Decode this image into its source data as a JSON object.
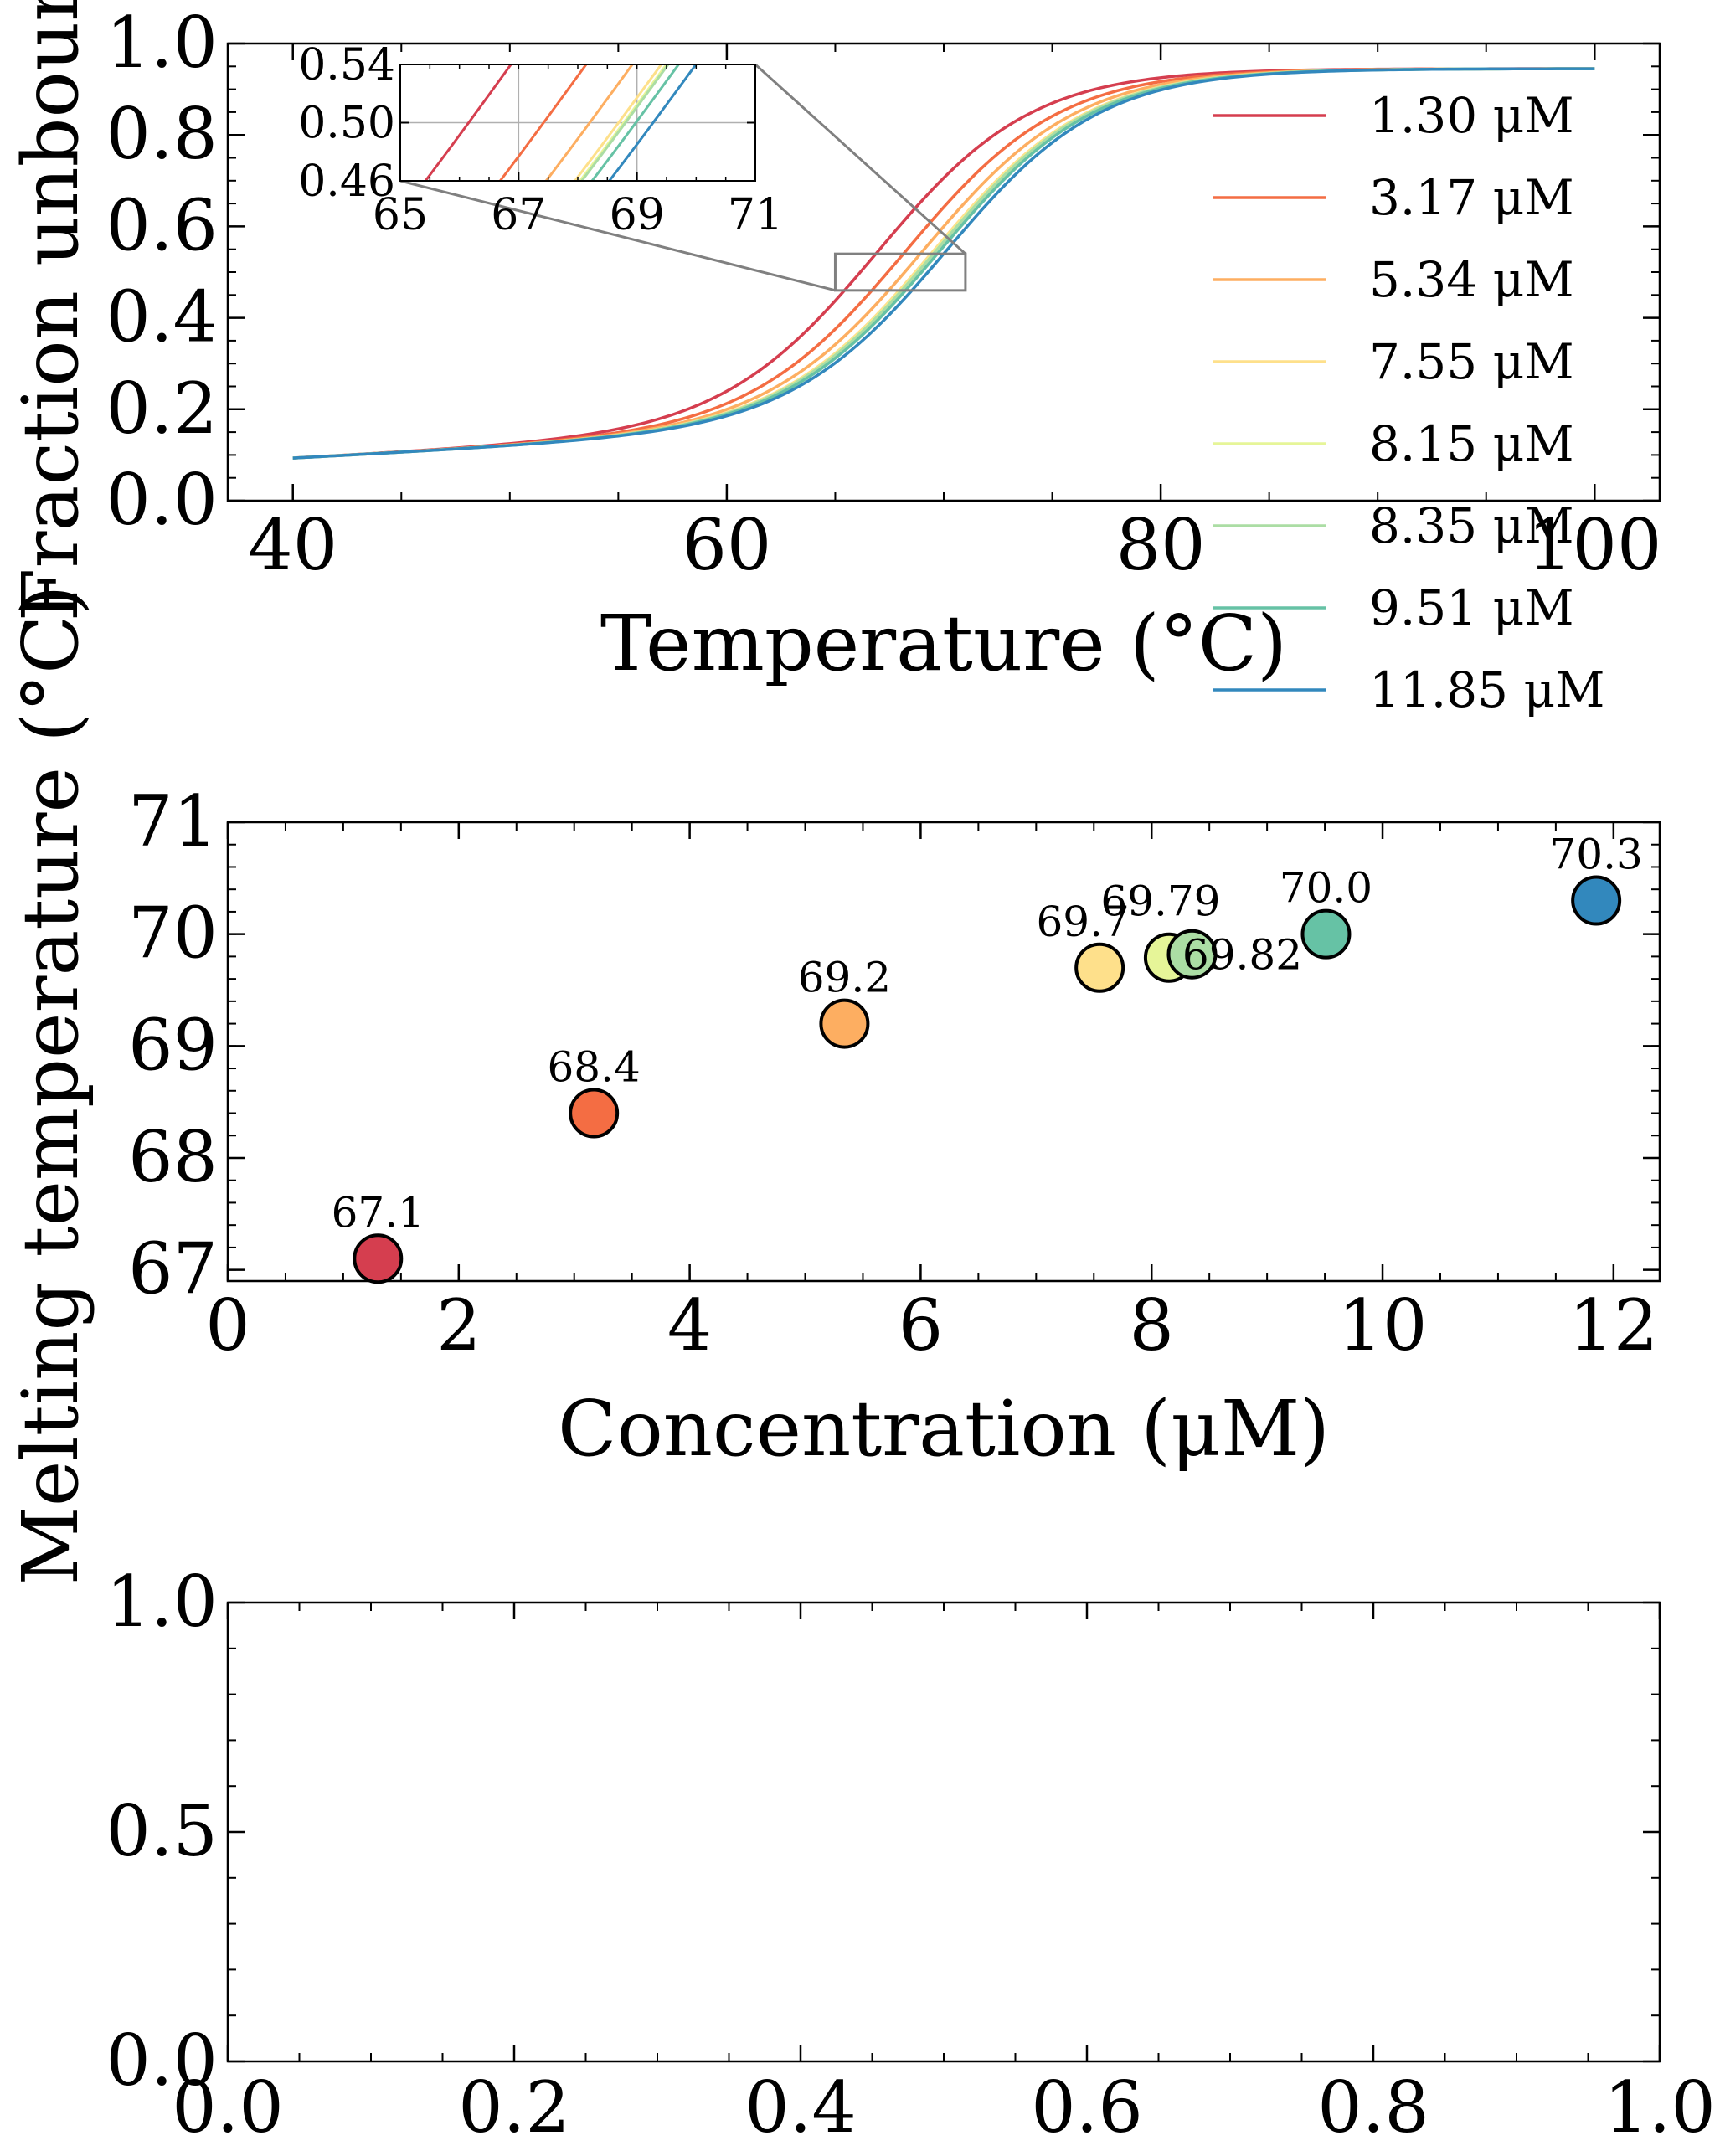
{
  "colors": {
    "s1": "#d53e4f",
    "s2": "#f46d43",
    "s3": "#fdae61",
    "s4": "#fee08b",
    "s5": "#e6f598",
    "s6": "#abdda4",
    "s7": "#66c2a5",
    "s8": "#3288bd",
    "inset_box": "#808080",
    "grid": "#b0b0b0"
  },
  "chart_data": [
    {
      "type": "line",
      "title": "",
      "xlabel": "Temperature (°C)",
      "ylabel": "Fraction unbound",
      "xlim": [
        37,
        103
      ],
      "ylim": [
        0.0,
        1.0
      ],
      "xticks": [
        "40",
        "60",
        "80",
        "100"
      ],
      "yticks": [
        "0.0",
        "0.2",
        "0.4",
        "0.6",
        "0.8",
        "1.0"
      ],
      "legend_placement": "right",
      "series": [
        {
          "name": "1.30 μM",
          "tm": 67.1
        },
        {
          "name": "3.17 μM",
          "tm": 68.4
        },
        {
          "name": "5.34 μM",
          "tm": 69.2
        },
        {
          "name": "7.55 μM",
          "tm": 69.7
        },
        {
          "name": "8.15 μM",
          "tm": 69.79
        },
        {
          "name": "8.35 μM",
          "tm": 69.82
        },
        {
          "name": "9.51 μM",
          "tm": 70.0
        },
        {
          "name": "11.85 μM",
          "tm": 70.3
        }
      ],
      "x_range": [
        40,
        100
      ],
      "baseline_low": [
        0.093,
        0.0025
      ],
      "baseline_high": 0.945,
      "inset": {
        "xlim": [
          65,
          71
        ],
        "ylim": [
          0.46,
          0.54
        ],
        "xticks": [
          "65",
          "67",
          "69",
          "71"
        ],
        "yticks": [
          "0.46",
          "0.50",
          "0.54"
        ],
        "grid": true
      }
    },
    {
      "type": "scatter",
      "title": "",
      "xlabel": "Concentration (μM)",
      "ylabel": "Melting temperature (°C)",
      "xlim": [
        0,
        12.4
      ],
      "ylim": [
        66.9,
        71.0
      ],
      "xticks": [
        "0",
        "2",
        "4",
        "6",
        "8",
        "10",
        "12"
      ],
      "yticks": [
        "67",
        "68",
        "69",
        "70",
        "71"
      ],
      "points": [
        {
          "x": 1.3,
          "y": 67.1,
          "label": "67.1"
        },
        {
          "x": 3.17,
          "y": 68.4,
          "label": "68.4"
        },
        {
          "x": 5.34,
          "y": 69.2,
          "label": "69.2"
        },
        {
          "x": 7.55,
          "y": 69.7,
          "label": "69.7"
        },
        {
          "x": 8.15,
          "y": 69.79,
          "label": "69.79"
        },
        {
          "x": 8.35,
          "y": 69.82,
          "label": "69.82"
        },
        {
          "x": 9.51,
          "y": 70.0,
          "label": "70.0"
        },
        {
          "x": 11.85,
          "y": 70.3,
          "label": "70.3"
        }
      ]
    },
    {
      "type": "line",
      "title": "",
      "xlabel": "",
      "ylabel": "",
      "xlim": [
        0.0,
        1.0
      ],
      "ylim": [
        0.0,
        1.0
      ],
      "xticks": [
        "0.0",
        "0.2",
        "0.4",
        "0.6",
        "0.8",
        "1.0"
      ],
      "yticks": [
        "0.0",
        "0.5",
        "1.0"
      ],
      "series": []
    }
  ]
}
